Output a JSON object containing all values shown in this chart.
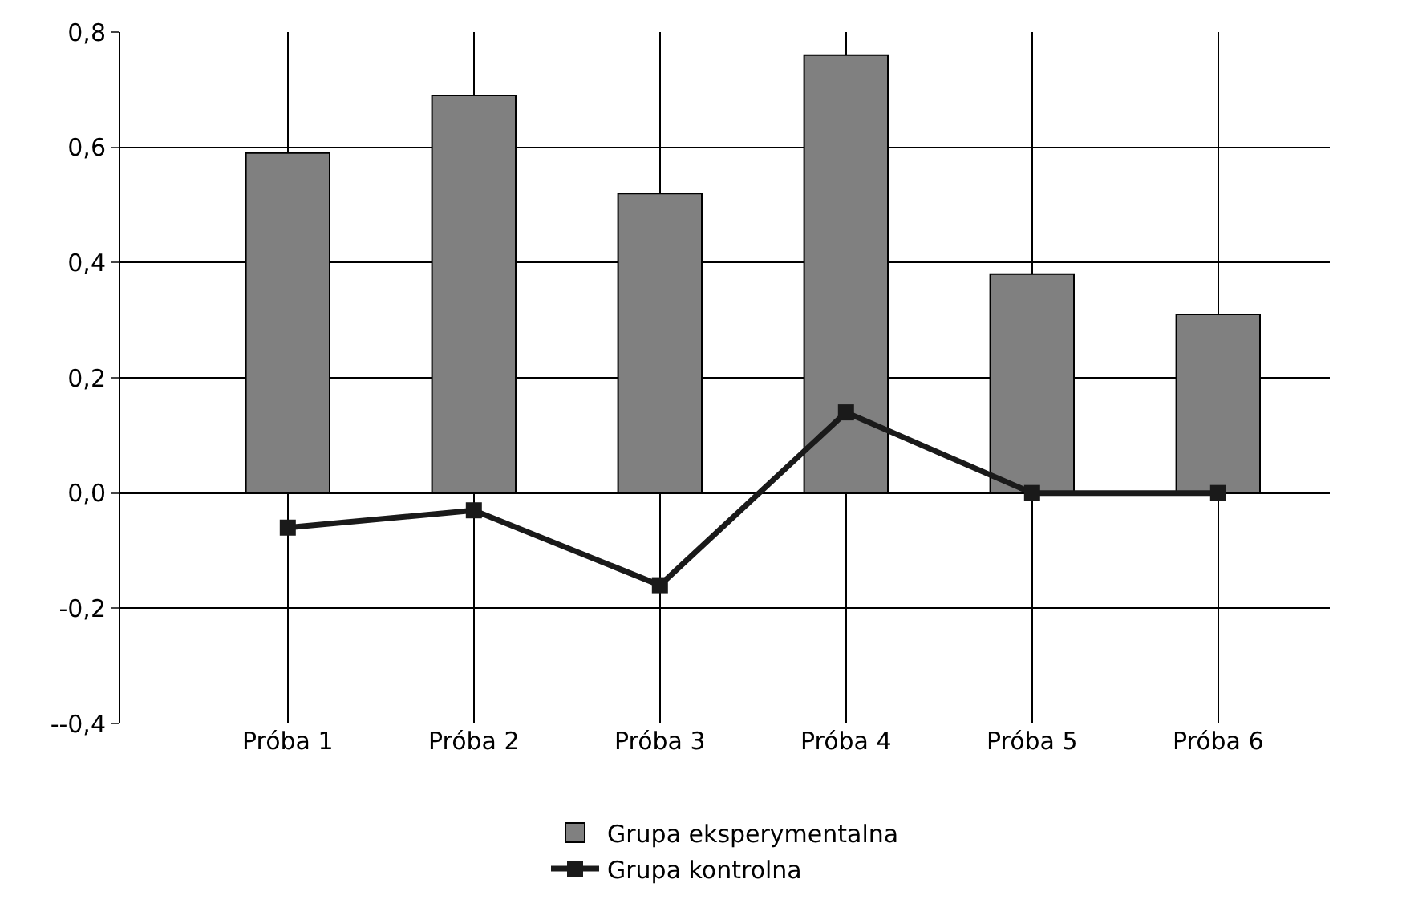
{
  "chart_data": {
    "type": "bar",
    "categories": [
      "Próba 1",
      "Próba 2",
      "Próba 3",
      "Próba 4",
      "Próba 5",
      "Próba 6"
    ],
    "series": [
      {
        "name": "Grupa eksperymentalna",
        "color": "#808080",
        "values": [
          0.59,
          0.69,
          0.52,
          0.76,
          0.38,
          0.31
        ]
      },
      {
        "name": "Grupa kontrolna",
        "type": "line",
        "color": "#1a1a1a",
        "marker": "square",
        "values": [
          -0.06,
          -0.03,
          -0.16,
          0.14,
          0.0,
          0.0
        ]
      }
    ],
    "ylim": [
      -0.4,
      0.8
    ],
    "yticks": [
      {
        "value": -0.4,
        "label": "--0,4"
      },
      {
        "value": -0.2,
        "label": "-0,2"
      },
      {
        "value": 0.0,
        "label": "0,0"
      },
      {
        "value": 0.2,
        "label": "0,2"
      },
      {
        "value": 0.4,
        "label": "0,4"
      },
      {
        "value": 0.6,
        "label": "0,6"
      },
      {
        "value": 0.8,
        "label": "0,8"
      }
    ],
    "grid": true,
    "legend": "bottom"
  }
}
